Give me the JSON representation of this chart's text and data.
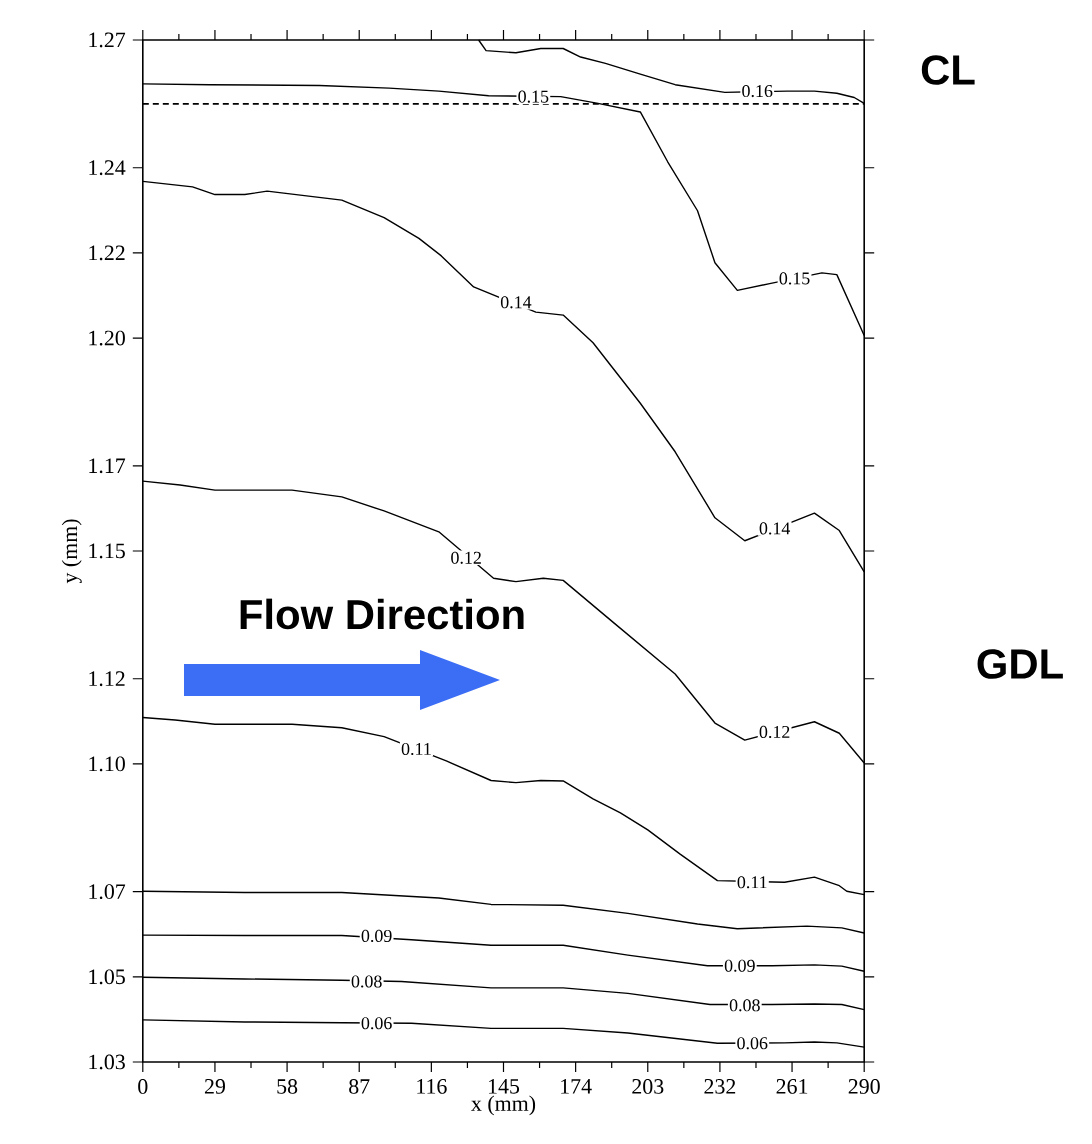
{
  "chart_data": {
    "type": "line",
    "xlabel": "x (mm)",
    "ylabel": "y (mm)",
    "xlim": [
      0,
      290
    ],
    "ylim": [
      1.03,
      1.27
    ],
    "xticks": [
      0,
      29,
      58,
      87,
      116,
      145,
      174,
      203,
      232,
      261,
      290
    ],
    "yticks": [
      {
        "value": 1.03,
        "label": "1.03"
      },
      {
        "value": 1.05,
        "label": "1.05"
      },
      {
        "value": 1.07,
        "label": "1.07"
      },
      {
        "value": 1.1,
        "label": "1.10"
      },
      {
        "value": 1.12,
        "label": "1.12"
      },
      {
        "value": 1.15,
        "label": "1.15"
      },
      {
        "value": 1.17,
        "label": "1.17"
      },
      {
        "value": 1.2,
        "label": "1.20"
      },
      {
        "value": 1.22,
        "label": "1.22"
      },
      {
        "value": 1.24,
        "label": "1.24"
      },
      {
        "value": 1.27,
        "label": "1.27"
      }
    ],
    "series": [
      {
        "color": "#000000",
        "x": [
          135,
          138,
          150,
          160,
          169,
          176,
          186,
          200,
          214,
          234,
          259,
          270,
          279,
          286,
          290
        ],
        "values": [
          1.27,
          1.2675,
          1.267,
          1.268,
          1.268,
          1.266,
          1.2645,
          1.262,
          1.2595,
          1.2577,
          1.258,
          1.258,
          1.2575,
          1.2565,
          1.2551
        ]
      },
      {
        "color": "#000000",
        "x": [
          0,
          27,
          71,
          99,
          119,
          139,
          168,
          183,
          200,
          211,
          223,
          230,
          239,
          252,
          273,
          279,
          290
        ],
        "values": [
          1.2597,
          1.2595,
          1.2593,
          1.2587,
          1.258,
          1.2569,
          1.2567,
          1.2551,
          1.2531,
          1.2414,
          1.2299,
          1.2177,
          1.2112,
          1.2128,
          1.2153,
          1.2149,
          1.2006
        ]
      },
      {
        "color": "#000000",
        "x": [
          0,
          20,
          29,
          41,
          50,
          80,
          97,
          111,
          120,
          133,
          158,
          169,
          181,
          189,
          200,
          214,
          230,
          242,
          270,
          280,
          290
        ],
        "values": [
          1.2368,
          1.2355,
          1.2337,
          1.2337,
          1.2345,
          1.2324,
          1.2283,
          1.2234,
          1.2193,
          1.212,
          1.2061,
          1.2054,
          1.1989,
          1.1929,
          1.1847,
          1.1733,
          1.1578,
          1.1524,
          1.1589,
          1.1548,
          1.1451
        ]
      },
      {
        "color": "#000000",
        "x": [
          0,
          15,
          29,
          60,
          80,
          97,
          119,
          141,
          150,
          161,
          169,
          189,
          214,
          230,
          242,
          270,
          280,
          290
        ],
        "values": [
          1.1664,
          1.1655,
          1.1643,
          1.1643,
          1.1627,
          1.1594,
          1.1545,
          1.1436,
          1.1428,
          1.1436,
          1.1431,
          1.1333,
          1.1211,
          1.1096,
          1.1056,
          1.1099,
          1.1072,
          1.1002
        ]
      },
      {
        "color": "#000000",
        "x": [
          0,
          13,
          29,
          60,
          80,
          97,
          122,
          140,
          150,
          160,
          169,
          181,
          192,
          203,
          216,
          231,
          258,
          270,
          280,
          283,
          290
        ],
        "values": [
          1.1109,
          1.1103,
          1.1093,
          1.1093,
          1.1085,
          1.1064,
          1.1007,
          1.0961,
          1.0956,
          1.0961,
          1.096,
          1.0918,
          1.0885,
          1.0845,
          1.0788,
          1.0726,
          1.0722,
          1.0734,
          1.0714,
          1.0701,
          1.0693
        ]
      },
      {
        "color": "#000000",
        "x": [
          0,
          41,
          80,
          119,
          140,
          169,
          195,
          223,
          239,
          267,
          281,
          290
        ],
        "values": [
          1.0701,
          1.0698,
          1.0698,
          1.0685,
          1.067,
          1.0668,
          1.0649,
          1.0624,
          1.0613,
          1.0619,
          1.0615,
          1.0603
        ]
      },
      {
        "color": "#000000",
        "x": [
          0,
          41,
          80,
          108,
          140,
          169,
          195,
          227,
          253,
          270,
          281,
          290
        ],
        "values": [
          1.0598,
          1.0597,
          1.0597,
          1.0587,
          1.0574,
          1.0574,
          1.0551,
          1.0526,
          1.0526,
          1.0528,
          1.0525,
          1.0513
        ]
      },
      {
        "color": "#000000",
        "x": [
          0,
          41,
          80,
          104,
          140,
          169,
          195,
          228,
          253,
          270,
          281,
          290
        ],
        "values": [
          1.0499,
          1.0495,
          1.0492,
          1.0489,
          1.0474,
          1.0474,
          1.0461,
          1.0435,
          1.0435,
          1.0436,
          1.0435,
          1.0423
        ]
      },
      {
        "color": "#000000",
        "x": [
          0,
          41,
          80,
          108,
          140,
          169,
          195,
          231,
          258,
          270,
          279,
          290
        ],
        "values": [
          1.0399,
          1.0394,
          1.0392,
          1.0391,
          1.0379,
          1.0379,
          1.0368,
          1.0344,
          1.0345,
          1.0347,
          1.0345,
          1.0335
        ]
      }
    ],
    "ref_lines": [
      {
        "axis": "y",
        "value": 1.255,
        "line_style": "dashed",
        "color": "#000000"
      }
    ],
    "annotations": [
      {
        "text": "0.16",
        "x": 247,
        "y": 1.258
      },
      {
        "text": "0.15",
        "x": 157,
        "y": 1.2567
      },
      {
        "text": "0.15",
        "x": 262,
        "y": 1.214
      },
      {
        "text": "0.14",
        "x": 150,
        "y": 1.2084
      },
      {
        "text": "0.14",
        "x": 254,
        "y": 1.1553
      },
      {
        "text": "0.12",
        "x": 130,
        "y": 1.1484
      },
      {
        "text": "0.12",
        "x": 254,
        "y": 1.1075
      },
      {
        "text": "0.11",
        "x": 110,
        "y": 1.1035
      },
      {
        "text": "0.11",
        "x": 245,
        "y": 1.0722
      },
      {
        "text": "0.09",
        "x": 94,
        "y": 1.0596
      },
      {
        "text": "0.09",
        "x": 240,
        "y": 1.0526
      },
      {
        "text": "0.08",
        "x": 90,
        "y": 1.0489
      },
      {
        "text": "0.08",
        "x": 242,
        "y": 1.0433
      },
      {
        "text": "0.06",
        "x": 94,
        "y": 1.0391
      },
      {
        "text": "0.06",
        "x": 245,
        "y": 1.0344
      },
      "Flow Direction",
      "CL",
      "GDL"
    ]
  }
}
